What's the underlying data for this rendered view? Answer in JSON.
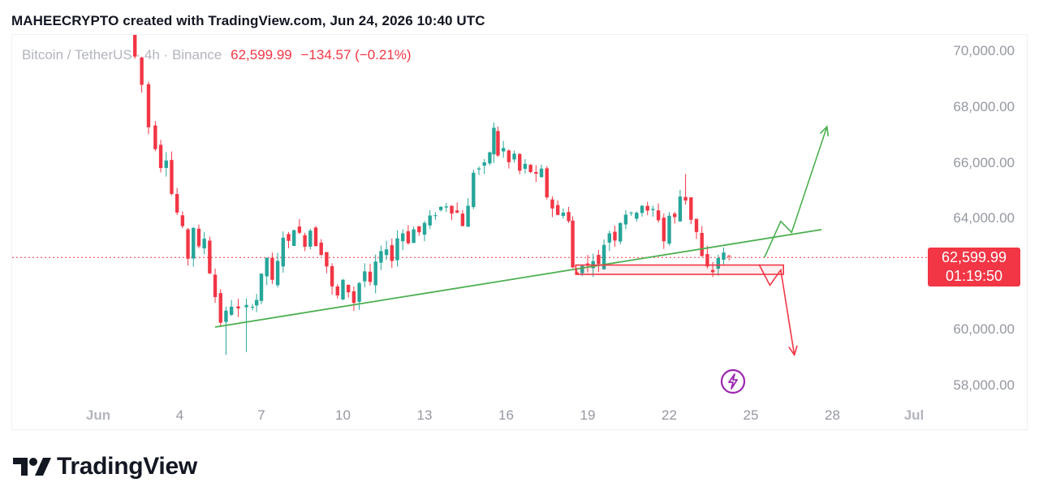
{
  "header": {
    "title": "MAHEECRYPTO created with TradingView.com, Jun 24, 2026 10:40 UTC"
  },
  "legend": {
    "symbol": "Bitcoin / TetherUS",
    "interval": "4h",
    "exchange": "Binance",
    "price": "62,599.99",
    "change": "−134.57 (−0.21%)"
  },
  "price_tag": {
    "price": "62,599.99",
    "countdown": "01:19:50"
  },
  "footer": {
    "brand": "TradingView"
  },
  "colors": {
    "up": "#26a69a",
    "down": "#f23645",
    "trendline": "#4caf50",
    "flash": "#9c27b0"
  },
  "chart_data": {
    "type": "candlestick",
    "symbol": "BTCUSDT",
    "interval": "4h",
    "ylim": [
      56600,
      71000
    ],
    "y_ticks": [
      {
        "value": 58000,
        "label": "58,000.00"
      },
      {
        "value": 60000,
        "label": "60,000.00"
      },
      {
        "value": 62000,
        "label": "62,000.00"
      },
      {
        "value": 64000,
        "label": "64,000.00"
      },
      {
        "value": 66000,
        "label": "66,000.00"
      },
      {
        "value": 68000,
        "label": "68,000.00"
      },
      {
        "value": 70000,
        "label": "70,000.00"
      }
    ],
    "x_ticks": [
      {
        "day": 1,
        "label": "Jun",
        "bold": true
      },
      {
        "day": 4,
        "label": "4",
        "bold": false
      },
      {
        "day": 7,
        "label": "7",
        "bold": false
      },
      {
        "day": 10,
        "label": "10",
        "bold": false
      },
      {
        "day": 13,
        "label": "13",
        "bold": false
      },
      {
        "day": 16,
        "label": "16",
        "bold": false
      },
      {
        "day": 19,
        "label": "19",
        "bold": false
      },
      {
        "day": 22,
        "label": "22",
        "bold": false
      },
      {
        "day": 25,
        "label": "25",
        "bold": false
      },
      {
        "day": 28,
        "label": "28",
        "bold": false
      },
      {
        "day": 31,
        "label": "Jul",
        "bold": true
      }
    ],
    "last_price": 62599.99,
    "grid": false,
    "close_path": [
      [
        2.2,
        70800
      ],
      [
        2.5,
        69800
      ],
      [
        2.7,
        68800
      ],
      [
        3.0,
        67300
      ],
      [
        3.2,
        66600
      ],
      [
        3.4,
        65900
      ],
      [
        3.6,
        66200
      ],
      [
        3.8,
        64900
      ],
      [
        4.0,
        64200
      ],
      [
        4.2,
        63600
      ],
      [
        4.4,
        62600
      ],
      [
        4.6,
        63700
      ],
      [
        4.8,
        62900
      ],
      [
        5.0,
        63300
      ],
      [
        5.2,
        62100
      ],
      [
        5.4,
        61200
      ],
      [
        5.6,
        60300
      ],
      [
        5.8,
        60600
      ],
      [
        6.0,
        60900
      ],
      [
        6.3,
        60700
      ],
      [
        6.6,
        60800
      ],
      [
        6.9,
        61100
      ],
      [
        7.1,
        61900
      ],
      [
        7.3,
        62600
      ],
      [
        7.5,
        61700
      ],
      [
        7.7,
        62400
      ],
      [
        7.9,
        63400
      ],
      [
        8.1,
        63100
      ],
      [
        8.3,
        63700
      ],
      [
        8.5,
        63400
      ],
      [
        8.7,
        63100
      ],
      [
        8.9,
        63600
      ],
      [
        9.1,
        63100
      ],
      [
        9.3,
        62800
      ],
      [
        9.5,
        62300
      ],
      [
        9.7,
        61500
      ],
      [
        9.9,
        61200
      ],
      [
        10.1,
        61700
      ],
      [
        10.3,
        61400
      ],
      [
        10.5,
        61000
      ],
      [
        10.7,
        61700
      ],
      [
        10.9,
        62100
      ],
      [
        11.1,
        61600
      ],
      [
        11.3,
        62400
      ],
      [
        11.5,
        62700
      ],
      [
        11.7,
        63000
      ],
      [
        11.9,
        62500
      ],
      [
        12.1,
        63300
      ],
      [
        12.3,
        63500
      ],
      [
        12.5,
        63200
      ],
      [
        12.7,
        63600
      ],
      [
        12.9,
        63500
      ],
      [
        13.1,
        63800
      ],
      [
        13.3,
        64000
      ],
      [
        13.5,
        64200
      ],
      [
        13.7,
        64400
      ],
      [
        13.9,
        64500
      ],
      [
        14.1,
        64300
      ],
      [
        14.3,
        64200
      ],
      [
        14.5,
        63800
      ],
      [
        14.7,
        64400
      ],
      [
        14.9,
        65700
      ],
      [
        15.1,
        65800
      ],
      [
        15.3,
        65900
      ],
      [
        15.5,
        66400
      ],
      [
        15.6,
        67200
      ],
      [
        15.8,
        66300
      ],
      [
        16.0,
        66500
      ],
      [
        16.2,
        66000
      ],
      [
        16.4,
        66300
      ],
      [
        16.6,
        65700
      ],
      [
        16.8,
        65900
      ],
      [
        17.0,
        65700
      ],
      [
        17.2,
        65500
      ],
      [
        17.4,
        65700
      ],
      [
        17.6,
        64800
      ],
      [
        17.8,
        64400
      ],
      [
        18.0,
        64100
      ],
      [
        18.2,
        64300
      ],
      [
        18.4,
        63900
      ],
      [
        18.5,
        62200
      ],
      [
        18.7,
        62000
      ],
      [
        18.9,
        62400
      ],
      [
        19.1,
        62300
      ],
      [
        19.3,
        62600
      ],
      [
        19.5,
        62300
      ],
      [
        19.7,
        63100
      ],
      [
        19.9,
        63500
      ],
      [
        20.1,
        63300
      ],
      [
        20.3,
        63900
      ],
      [
        20.5,
        64200
      ],
      [
        20.7,
        64100
      ],
      [
        20.9,
        64300
      ],
      [
        21.1,
        64500
      ],
      [
        21.3,
        64200
      ],
      [
        21.5,
        64300
      ],
      [
        21.7,
        64000
      ],
      [
        21.9,
        63200
      ],
      [
        22.1,
        64100
      ],
      [
        22.3,
        64000
      ],
      [
        22.5,
        64800
      ],
      [
        22.7,
        64700
      ],
      [
        22.9,
        64000
      ],
      [
        23.1,
        63500
      ],
      [
        23.3,
        62600
      ],
      [
        23.5,
        62200
      ],
      [
        23.7,
        62100
      ],
      [
        23.9,
        62600
      ],
      [
        24.1,
        62700
      ],
      [
        24.3,
        62600
      ]
    ],
    "spikes": [
      {
        "day": 5.6,
        "low": 59100
      },
      {
        "day": 6.3,
        "low": 59200
      },
      {
        "day": 15.6,
        "high": 67300
      },
      {
        "day": 22.5,
        "high": 65600
      },
      {
        "day": 23.5,
        "low": 61900
      }
    ],
    "annotations": {
      "trendline": {
        "from": [
          5.3,
          60100
        ],
        "to": [
          27.6,
          63600
        ]
      },
      "support_zone": {
        "from_day": 18.8,
        "to_day": 26.2,
        "top": 62240,
        "bottom": 62080
      },
      "bullish_path": [
        [
          25.5,
          62600
        ],
        [
          26.1,
          63900
        ],
        [
          26.5,
          63500
        ],
        [
          27.8,
          67300
        ]
      ],
      "bearish_path": [
        [
          25.3,
          62350
        ],
        [
          25.7,
          61600
        ],
        [
          26.1,
          62150
        ],
        [
          26.6,
          59100
        ]
      ]
    }
  }
}
